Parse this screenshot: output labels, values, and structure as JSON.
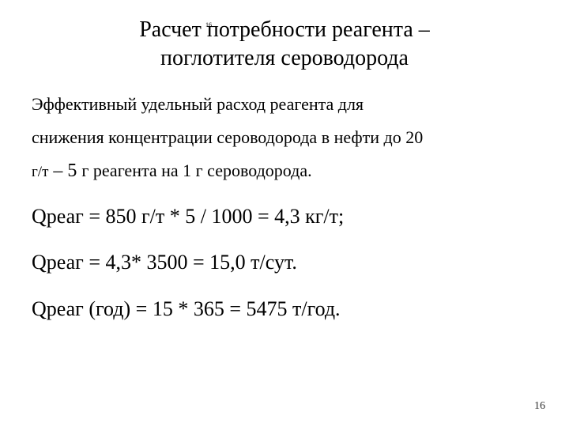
{
  "title_line1": "Расчет потребности реагента –",
  "title_line2": "поглотителя сероводорода",
  "paragraph_a": "Эффективный удельный расход реагента для",
  "paragraph_b": "снижения концентрации сероводорода в  нефти до 20",
  "paragraph_c_pre": "г/т",
  "paragraph_c_num": "   – 5 ",
  "paragraph_c_post": "г реагента на 1 г сероводорода.",
  "formula1": "Qреаг = 850 г/т * 5 / 1000 = 4,3 кг/т;",
  "formula2": "Qреаг = 4,3* 3500 = 15,0 т/сут.",
  "formula3": "Qреаг (год) = 15 * 365 = 5475 т/год.",
  "page_number": "16",
  "tiny_marker": "16",
  "colors": {
    "background": "#ffffff",
    "text": "#000000"
  },
  "typography": {
    "title_fontsize": 28,
    "paragraph_fontsize": 22,
    "formula_fontsize": 26,
    "pagenum_fontsize": 14,
    "font_family": "Times New Roman"
  }
}
